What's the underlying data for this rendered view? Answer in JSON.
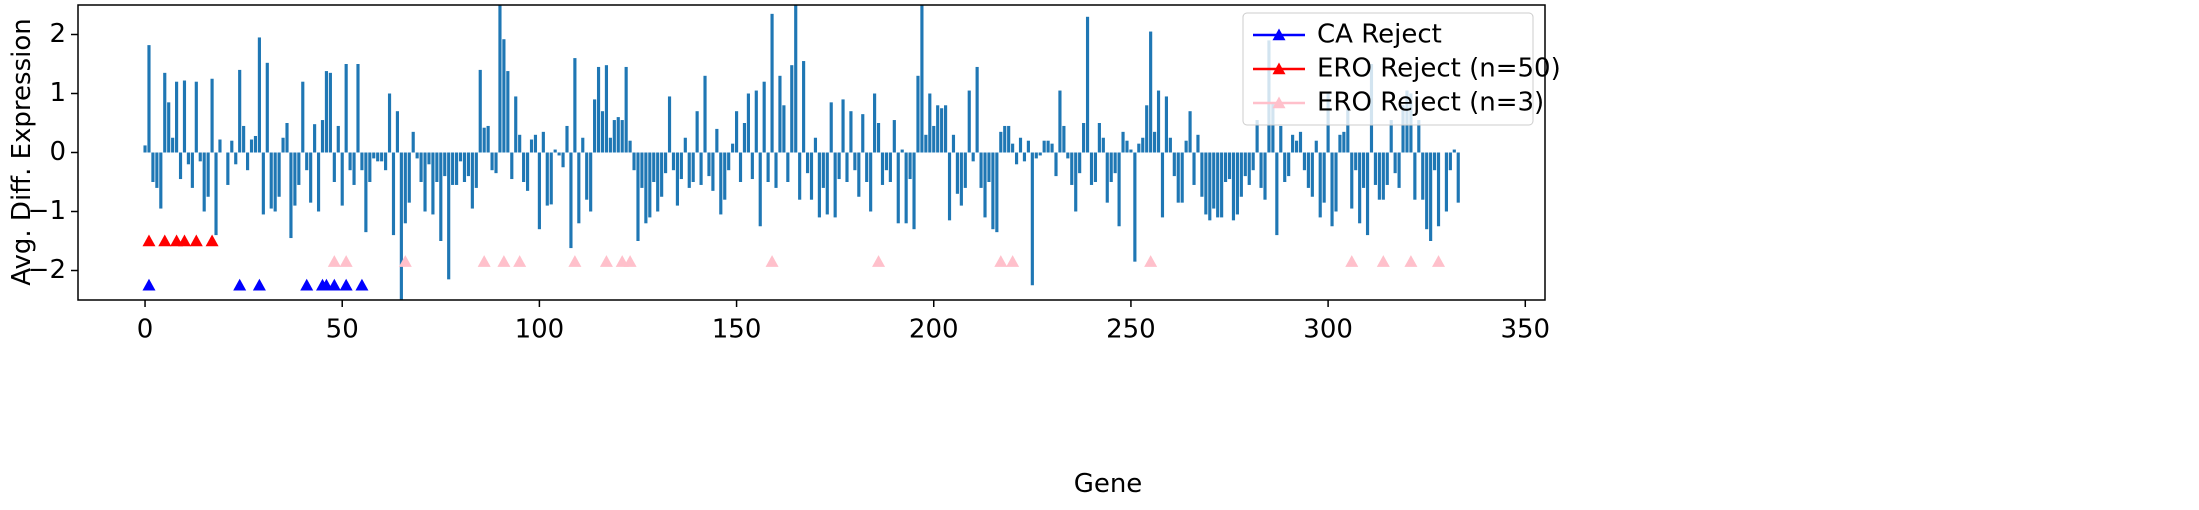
{
  "chart_data": {
    "type": "bar",
    "xlabel": "Gene",
    "ylabel": "Avg. Diff. Expression",
    "xlim": [
      -17,
      355
    ],
    "ylim": [
      -2.5,
      2.5
    ],
    "xticks": [
      0,
      50,
      100,
      150,
      200,
      250,
      300,
      350
    ],
    "yticks": [
      {
        "value": -2,
        "label": "−2"
      },
      {
        "value": -1,
        "label": "−1"
      },
      0,
      1,
      2
    ],
    "bar_color": "#1f77b4",
    "legend": "upper right",
    "x": [
      0,
      1,
      2,
      3,
      4,
      5,
      6,
      7,
      8,
      9,
      10,
      11,
      12,
      13,
      14,
      15,
      16,
      17,
      18,
      19,
      20,
      21,
      22,
      23,
      24,
      25,
      26,
      27,
      28,
      29,
      30,
      31,
      32,
      33,
      34,
      35,
      36,
      37,
      38,
      39,
      40,
      41,
      42,
      43,
      44,
      45,
      46,
      47,
      48,
      49,
      50,
      51,
      52,
      53,
      54,
      55,
      56,
      57,
      58,
      59,
      60,
      61,
      62,
      63,
      64,
      65,
      66,
      67,
      68,
      69,
      70,
      71,
      72,
      73,
      74,
      75,
      76,
      77,
      78,
      79,
      80,
      81,
      82,
      83,
      84,
      85,
      86,
      87,
      88,
      89,
      90,
      91,
      92,
      93,
      94,
      95,
      96,
      97,
      98,
      99,
      100,
      101,
      102,
      103,
      104,
      105,
      106,
      107,
      108,
      109,
      110,
      111,
      112,
      113,
      114,
      115,
      116,
      117,
      118,
      119,
      120,
      121,
      122,
      123,
      124,
      125,
      126,
      127,
      128,
      129,
      130,
      131,
      132,
      133,
      134,
      135,
      136,
      137,
      138,
      139,
      140,
      141,
      142,
      143,
      144,
      145,
      146,
      147,
      148,
      149,
      150,
      151,
      152,
      153,
      154,
      155,
      156,
      157,
      158,
      159,
      160,
      161,
      162,
      163,
      164,
      165,
      166,
      167,
      168,
      169,
      170,
      171,
      172,
      173,
      174,
      175,
      176,
      177,
      178,
      179,
      180,
      181,
      182,
      183,
      184,
      185,
      186,
      187,
      188,
      189,
      190,
      191,
      192,
      193,
      194,
      195,
      196,
      197,
      198,
      199,
      200,
      201,
      202,
      203,
      204,
      205,
      206,
      207,
      208,
      209,
      210,
      211,
      212,
      213,
      214,
      215,
      216,
      217,
      218,
      219,
      220,
      221,
      222,
      223,
      224,
      225,
      226,
      227,
      228,
      229,
      230,
      231,
      232,
      233,
      234,
      235,
      236,
      237,
      238,
      239,
      240,
      241,
      242,
      243,
      244,
      245,
      246,
      247,
      248,
      249,
      250,
      251,
      252,
      253,
      254,
      255,
      256,
      257,
      258,
      259,
      260,
      261,
      262,
      263,
      264,
      265,
      266,
      267,
      268,
      269,
      270,
      271,
      272,
      273,
      274,
      275,
      276,
      277,
      278,
      279,
      280,
      281,
      282,
      283,
      284,
      285,
      286,
      287,
      288,
      289,
      290,
      291,
      292,
      293,
      294,
      295,
      296,
      297,
      298,
      299,
      300,
      301,
      302,
      303,
      304,
      305,
      306,
      307,
      308,
      309,
      310,
      311,
      312,
      313,
      314,
      315,
      316,
      317,
      318,
      319,
      320,
      321,
      322,
      323,
      324,
      325,
      326,
      327,
      328,
      329,
      330,
      331,
      332,
      333
    ],
    "values": [
      0.12,
      1.82,
      -0.5,
      -0.6,
      -0.95,
      1.35,
      0.85,
      0.25,
      1.2,
      -0.45,
      1.22,
      -0.2,
      -0.6,
      1.2,
      -0.15,
      -1.0,
      -0.75,
      1.25,
      -1.4,
      0.22,
      0,
      -0.55,
      0.2,
      -0.2,
      1.4,
      0.45,
      -0.3,
      0.22,
      0.28,
      1.95,
      -1.05,
      1.52,
      -0.95,
      -1.0,
      -0.75,
      0.25,
      0.5,
      -1.45,
      -0.9,
      -0.55,
      1.2,
      -0.3,
      -0.85,
      0.48,
      -1.0,
      0.55,
      1.38,
      1.35,
      -0.5,
      0.45,
      -0.9,
      1.5,
      -0.3,
      -0.55,
      1.5,
      -0.3,
      -1.35,
      -0.5,
      -0.1,
      -0.15,
      -0.15,
      -0.3,
      1.0,
      -1.4,
      0.7,
      -2.5,
      -1.2,
      -0.85,
      0.35,
      -0.1,
      -0.5,
      -1.0,
      -0.2,
      -1.05,
      -0.5,
      -1.5,
      -0.4,
      -2.15,
      -0.55,
      -0.55,
      -0.15,
      -0.5,
      -0.4,
      -0.95,
      -0.6,
      1.4,
      0.42,
      0.45,
      -0.3,
      -0.35,
      2.5,
      1.92,
      1.38,
      -0.45,
      0.95,
      0.3,
      -0.5,
      -0.65,
      0.22,
      0.3,
      -1.3,
      0.35,
      -0.9,
      -0.88,
      0.05,
      -0.05,
      -0.25,
      0.45,
      -1.62,
      1.6,
      -1.2,
      0.25,
      -0.8,
      -1.0,
      0.9,
      1.45,
      0.7,
      1.48,
      0.25,
      0.55,
      0.6,
      0.55,
      1.45,
      0.2,
      -0.3,
      -1.5,
      -0.6,
      -1.2,
      -1.1,
      -0.5,
      -1.0,
      -0.75,
      -0.35,
      0.95,
      -0.3,
      -0.9,
      -0.45,
      0.25,
      -0.6,
      -0.5,
      0.7,
      -0.55,
      1.3,
      -0.4,
      -0.65,
      0.4,
      -1.05,
      -0.8,
      -0.3,
      0.15,
      0.7,
      -0.5,
      0.5,
      1.0,
      -0.45,
      1.05,
      -1.25,
      1.2,
      -0.5,
      2.35,
      -0.6,
      1.3,
      0.8,
      -0.5,
      1.48,
      2.5,
      -0.8,
      1.55,
      -0.35,
      -0.8,
      0.25,
      -1.1,
      -0.6,
      -1.05,
      0.85,
      -1.1,
      -0.45,
      0.9,
      -0.5,
      0.7,
      -0.3,
      -0.75,
      0.65,
      -0.5,
      -1.0,
      1.0,
      0.5,
      -0.55,
      -0.3,
      -0.5,
      0.55,
      -1.2,
      0.05,
      -1.2,
      -0.45,
      -1.3,
      1.3,
      2.5,
      0.3,
      1.0,
      0.45,
      0.8,
      0.75,
      0.8,
      -1.15,
      0.3,
      -0.7,
      -0.9,
      -0.6,
      1.05,
      -0.15,
      1.45,
      -0.6,
      -1.1,
      -0.5,
      -1.3,
      -1.35,
      0.35,
      0.45,
      0.45,
      0.15,
      -0.2,
      0.25,
      -0.15,
      0.2,
      -2.25,
      -0.1,
      -0.05,
      0.2,
      0.2,
      0.15,
      -0.4,
      1.05,
      0.45,
      -0.1,
      -0.55,
      -1.0,
      -0.35,
      0.5,
      2.3,
      -0.55,
      -0.5,
      0.5,
      0.25,
      -0.85,
      -0.5,
      -0.35,
      -1.25,
      0.35,
      0.2,
      0.05,
      -1.85,
      0.15,
      0.25,
      0.8,
      2.05,
      0.35,
      1.05,
      -1.1,
      0.95,
      0.25,
      -0.4,
      -0.85,
      -0.85,
      0.2,
      0.7,
      -0.55,
      0.3,
      -0.75,
      -1.05,
      -1.15,
      -0.95,
      -1.1,
      -1.1,
      -0.5,
      -0.45,
      -1.15,
      -1.05,
      -0.75,
      -0.4,
      -0.55,
      -0.3,
      0.55,
      -0.6,
      -0.8,
      1.9,
      0.85,
      -1.4,
      0.45,
      -0.5,
      -0.4,
      0.3,
      0.2,
      0.35,
      -0.3,
      -0.6,
      -0.75,
      0.2,
      -1.1,
      -0.85,
      1.0,
      -1.25,
      -1.0,
      0.3,
      0.35,
      0.75,
      -0.95,
      -0.3,
      -1.2,
      -0.6,
      -1.4,
      1.5,
      -0.55,
      -0.8,
      -0.8,
      -0.55,
      0.55,
      -0.35,
      -0.6,
      0.8,
      1.05,
      1.0,
      -0.8,
      0.55,
      -0.8,
      -1.3,
      -1.5,
      -0.3,
      -1.25,
      0.0,
      -1.0,
      -0.3,
      0.05,
      -0.85
    ],
    "series": [
      {
        "name": "CA Reject",
        "color": "#0000ff",
        "x": [
          1,
          24,
          29,
          41,
          45,
          46,
          48,
          51,
          55
        ],
        "values": [
          -2.25,
          -2.25,
          -2.25,
          -2.25,
          -2.25,
          -2.25,
          -2.25,
          -2.25,
          -2.25
        ]
      },
      {
        "name": "ERO Reject (n=50)",
        "color": "#ff0000",
        "x": [
          1,
          5,
          8,
          10,
          13,
          17
        ],
        "values": [
          -1.5,
          -1.5,
          -1.5,
          -1.5,
          -1.5,
          -1.5
        ]
      },
      {
        "name": "ERO Reject (n=3)",
        "color": "#ffc0cb",
        "x": [
          48,
          51,
          66,
          86,
          91,
          95,
          109,
          117,
          121,
          123,
          159,
          186,
          217,
          220,
          255,
          306,
          314,
          321,
          328
        ],
        "values": [
          -1.85,
          -1.85,
          -1.85,
          -1.85,
          -1.85,
          -1.85,
          -1.85,
          -1.85,
          -1.85,
          -1.85,
          -1.85,
          -1.85,
          -1.85,
          -1.85,
          -1.85,
          -1.85,
          -1.85,
          -1.85,
          -1.85
        ]
      }
    ]
  }
}
